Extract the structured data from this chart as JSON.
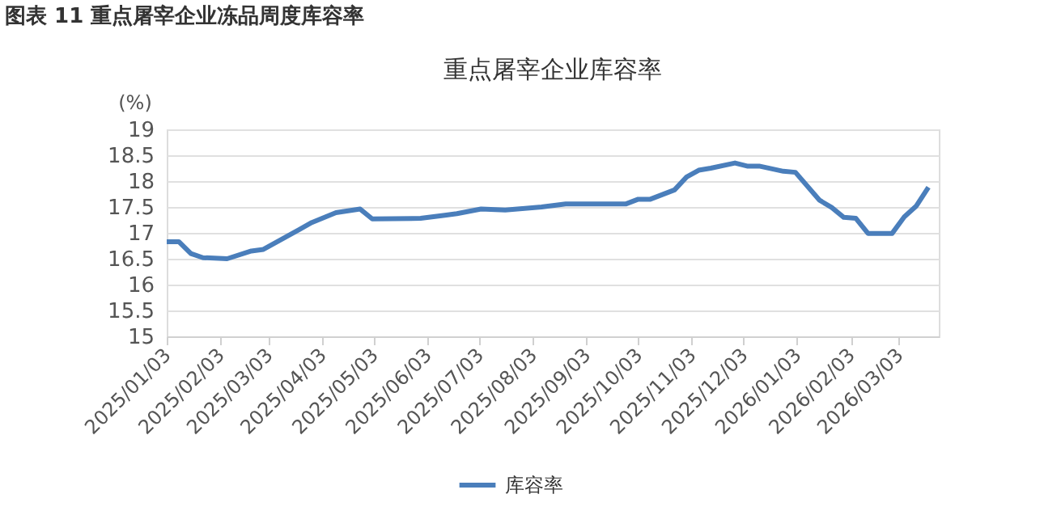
{
  "chart_data": {
    "type": "line",
    "title": "重点屠宰企业库容率",
    "ylabel": "(%)",
    "annotations": [
      "图表 11  重点屠宰企业冻品周度库容率"
    ],
    "x": [
      "2025-01-03",
      "2025-01-10",
      "2025-01-17",
      "2025-01-24",
      "2025-02-07",
      "2025-02-21",
      "2025-02-28",
      "2025-03-21",
      "2025-03-28",
      "2025-04-11",
      "2025-04-25",
      "2025-05-02",
      "2025-05-30",
      "2025-06-13",
      "2025-06-20",
      "2025-07-04",
      "2025-07-18",
      "2025-08-08",
      "2025-08-22",
      "2025-09-26",
      "2025-10-03",
      "2025-10-10",
      "2025-10-24",
      "2025-10-31",
      "2025-11-07",
      "2025-11-14",
      "2025-11-28",
      "2025-12-05",
      "2025-12-12",
      "2025-12-26",
      "2026-01-02",
      "2026-01-16",
      "2026-01-23",
      "2026-01-30",
      "2026-02-06",
      "2026-02-13",
      "2026-02-27",
      "2026-03-06",
      "2026-03-13",
      "2026-03-20"
    ],
    "series": [
      {
        "name": "库容率",
        "color": "#4a7ebb",
        "values": [
          16.83,
          16.83,
          16.6,
          16.52,
          16.5,
          16.65,
          16.68,
          17.07,
          17.2,
          17.39,
          17.46,
          17.27,
          17.28,
          17.34,
          17.37,
          17.46,
          17.44,
          17.5,
          17.56,
          17.56,
          17.65,
          17.65,
          17.83,
          18.08,
          18.21,
          18.25,
          18.35,
          18.29,
          18.29,
          18.19,
          18.17,
          17.63,
          17.49,
          17.3,
          17.28,
          16.99,
          16.99,
          17.31,
          17.52,
          17.88
        ]
      }
    ],
    "xlim": [
      "2025-01-03",
      "2026-03-26"
    ],
    "xticks": [
      {
        "value": "2025-01-03",
        "label": "2025/01/03"
      },
      {
        "value": "2025-02-03",
        "label": "2025/02/03"
      },
      {
        "value": "2025-03-03",
        "label": "2025/03/03"
      },
      {
        "value": "2025-04-03",
        "label": "2025/04/03"
      },
      {
        "value": "2025-05-03",
        "label": "2025/05/03"
      },
      {
        "value": "2025-06-03",
        "label": "2025/06/03"
      },
      {
        "value": "2025-07-03",
        "label": "2025/07/03"
      },
      {
        "value": "2025-08-03",
        "label": "2025/08/03"
      },
      {
        "value": "2025-09-03",
        "label": "2025/09/03"
      },
      {
        "value": "2025-10-03",
        "label": "2025/10/03"
      },
      {
        "value": "2025-11-03",
        "label": "2025/11/03"
      },
      {
        "value": "2025-12-03",
        "label": "2025/12/03"
      },
      {
        "value": "2026-01-03",
        "label": "2026/01/03"
      },
      {
        "value": "2026-02-03",
        "label": "2026/02/03"
      },
      {
        "value": "2026-03-03",
        "label": "2026/03/03"
      }
    ],
    "ylim": [
      15,
      19
    ],
    "yticks": [
      15,
      15.5,
      16,
      16.5,
      17,
      17.5,
      18,
      18.5,
      19
    ],
    "grid": "y",
    "legend": "bottom",
    "marker": "none",
    "line_style": "solid"
  }
}
